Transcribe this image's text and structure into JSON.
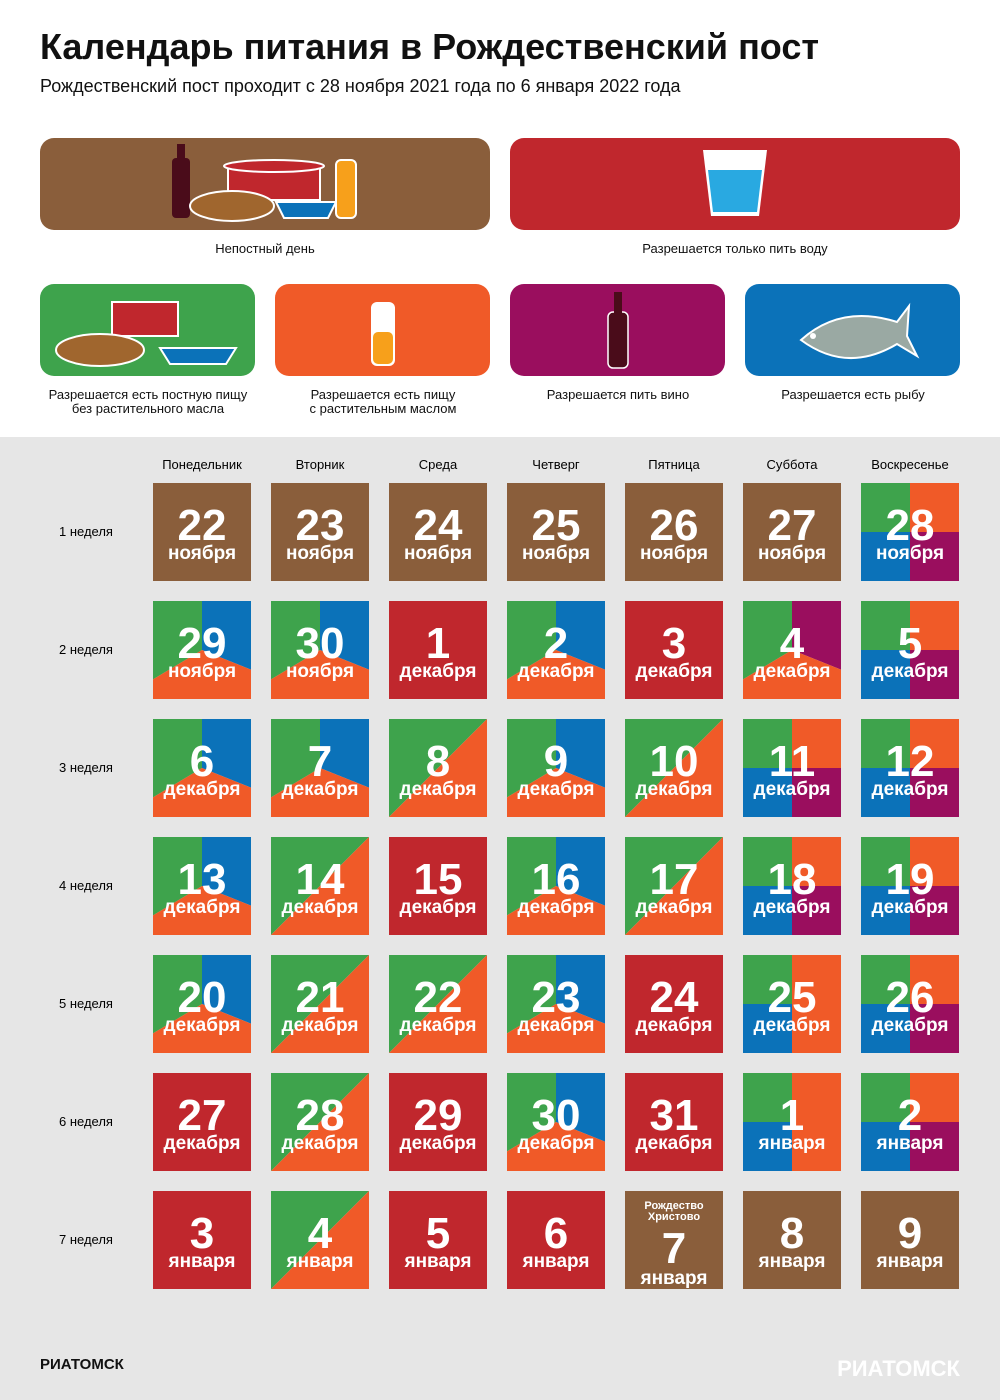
{
  "header": {
    "title": "Календарь питания в Рождественский пост",
    "subtitle": "Рождественский пост проходит с 28 ноября 2021 года по 6 января 2022 года"
  },
  "legend": [
    {
      "label": "Непостный день",
      "color": "#8a5e3b"
    },
    {
      "label": "Разрешается только пить воду",
      "color": "#c0272d"
    },
    {
      "label": "Разрешается есть постную пищу\nбез растительного масла",
      "color": "#3ea34c"
    },
    {
      "label": "Разрешается есть пищу\nс растительным маслом",
      "color": "#f05a28"
    },
    {
      "label": "Разрешается пить вино",
      "color": "#9a0e5e"
    },
    {
      "label": "Разрешается есть рыбу",
      "color": "#0b72b9"
    }
  ],
  "weekdays": [
    "Понедельник",
    "Вторник",
    "Среда",
    "Четверг",
    "Пятница",
    "Суббота",
    "Воскресенье"
  ],
  "weeks": [
    {
      "label": "1 неделя",
      "days": [
        {
          "number": "22",
          "month": "ноября",
          "pattern": "solid",
          "fills": [
            "#8a5e3b"
          ]
        },
        {
          "number": "23",
          "month": "ноября",
          "pattern": "solid",
          "fills": [
            "#8a5e3b"
          ]
        },
        {
          "number": "24",
          "month": "ноября",
          "pattern": "solid",
          "fills": [
            "#8a5e3b"
          ]
        },
        {
          "number": "25",
          "month": "ноября",
          "pattern": "solid",
          "fills": [
            "#8a5e3b"
          ]
        },
        {
          "number": "26",
          "month": "ноября",
          "pattern": "solid",
          "fills": [
            "#8a5e3b"
          ]
        },
        {
          "number": "27",
          "month": "ноября",
          "pattern": "solid",
          "fills": [
            "#8a5e3b"
          ]
        },
        {
          "number": "28",
          "month": "ноября",
          "pattern": "quad",
          "fills": [
            "#3ea34c",
            "#f05a28",
            "#0b72b9",
            "#9a0e5e"
          ]
        }
      ]
    },
    {
      "label": "2 неделя",
      "days": [
        {
          "number": "29",
          "month": "ноября",
          "pattern": "tri",
          "fills": [
            "#3ea34c",
            "#0b72b9",
            "#f05a28"
          ]
        },
        {
          "number": "30",
          "month": "ноября",
          "pattern": "tri",
          "fills": [
            "#3ea34c",
            "#0b72b9",
            "#f05a28"
          ]
        },
        {
          "number": "1",
          "month": "декабря",
          "pattern": "solid",
          "fills": [
            "#c0272d"
          ]
        },
        {
          "number": "2",
          "month": "декабря",
          "pattern": "tri",
          "fills": [
            "#3ea34c",
            "#0b72b9",
            "#f05a28"
          ]
        },
        {
          "number": "3",
          "month": "декабря",
          "pattern": "solid",
          "fills": [
            "#c0272d"
          ]
        },
        {
          "number": "4",
          "month": "декабря",
          "pattern": "tri",
          "fills": [
            "#3ea34c",
            "#9a0e5e",
            "#f05a28"
          ]
        },
        {
          "number": "5",
          "month": "декабря",
          "pattern": "quad",
          "fills": [
            "#3ea34c",
            "#f05a28",
            "#0b72b9",
            "#9a0e5e"
          ]
        }
      ]
    },
    {
      "label": "3 неделя",
      "days": [
        {
          "number": "6",
          "month": "декабря",
          "pattern": "tri",
          "fills": [
            "#3ea34c",
            "#0b72b9",
            "#f05a28"
          ]
        },
        {
          "number": "7",
          "month": "декабря",
          "pattern": "tri",
          "fills": [
            "#3ea34c",
            "#0b72b9",
            "#f05a28"
          ]
        },
        {
          "number": "8",
          "month": "декабря",
          "pattern": "diag",
          "fills": [
            "#3ea34c",
            "#f05a28"
          ]
        },
        {
          "number": "9",
          "month": "декабря",
          "pattern": "tri",
          "fills": [
            "#3ea34c",
            "#0b72b9",
            "#f05a28"
          ]
        },
        {
          "number": "10",
          "month": "декабря",
          "pattern": "diag",
          "fills": [
            "#3ea34c",
            "#f05a28"
          ]
        },
        {
          "number": "11",
          "month": "декабря",
          "pattern": "quad",
          "fills": [
            "#3ea34c",
            "#f05a28",
            "#0b72b9",
            "#9a0e5e"
          ]
        },
        {
          "number": "12",
          "month": "декабря",
          "pattern": "quad",
          "fills": [
            "#3ea34c",
            "#f05a28",
            "#0b72b9",
            "#9a0e5e"
          ]
        }
      ]
    },
    {
      "label": "4 неделя",
      "days": [
        {
          "number": "13",
          "month": "декабря",
          "pattern": "tri",
          "fills": [
            "#3ea34c",
            "#0b72b9",
            "#f05a28"
          ]
        },
        {
          "number": "14",
          "month": "декабря",
          "pattern": "diag",
          "fills": [
            "#3ea34c",
            "#f05a28"
          ]
        },
        {
          "number": "15",
          "month": "декабря",
          "pattern": "solid",
          "fills": [
            "#c0272d"
          ]
        },
        {
          "number": "16",
          "month": "декабря",
          "pattern": "tri",
          "fills": [
            "#3ea34c",
            "#0b72b9",
            "#f05a28"
          ]
        },
        {
          "number": "17",
          "month": "декабря",
          "pattern": "diag",
          "fills": [
            "#3ea34c",
            "#f05a28"
          ]
        },
        {
          "number": "18",
          "month": "декабря",
          "pattern": "quad",
          "fills": [
            "#3ea34c",
            "#f05a28",
            "#0b72b9",
            "#9a0e5e"
          ]
        },
        {
          "number": "19",
          "month": "декабря",
          "pattern": "quad",
          "fills": [
            "#3ea34c",
            "#f05a28",
            "#0b72b9",
            "#9a0e5e"
          ]
        }
      ]
    },
    {
      "label": "5 неделя",
      "days": [
        {
          "number": "20",
          "month": "декабря",
          "pattern": "tri",
          "fills": [
            "#3ea34c",
            "#0b72b9",
            "#f05a28"
          ]
        },
        {
          "number": "21",
          "month": "декабря",
          "pattern": "diag",
          "fills": [
            "#3ea34c",
            "#f05a28"
          ]
        },
        {
          "number": "22",
          "month": "декабря",
          "pattern": "diag",
          "fills": [
            "#3ea34c",
            "#f05a28"
          ]
        },
        {
          "number": "23",
          "month": "декабря",
          "pattern": "tri",
          "fills": [
            "#3ea34c",
            "#0b72b9",
            "#f05a28"
          ]
        },
        {
          "number": "24",
          "month": "декабря",
          "pattern": "solid",
          "fills": [
            "#c0272d"
          ]
        },
        {
          "number": "25",
          "month": "декабря",
          "pattern": "quad",
          "fills": [
            "#3ea34c",
            "#f05a28",
            "#0b72b9",
            "#f05a28"
          ]
        },
        {
          "number": "26",
          "month": "декабря",
          "pattern": "quad",
          "fills": [
            "#3ea34c",
            "#f05a28",
            "#0b72b9",
            "#9a0e5e"
          ]
        }
      ]
    },
    {
      "label": "6 неделя",
      "days": [
        {
          "number": "27",
          "month": "декабря",
          "pattern": "solid",
          "fills": [
            "#c0272d"
          ]
        },
        {
          "number": "28",
          "month": "декабря",
          "pattern": "diag",
          "fills": [
            "#3ea34c",
            "#f05a28"
          ]
        },
        {
          "number": "29",
          "month": "декабря",
          "pattern": "solid",
          "fills": [
            "#c0272d"
          ]
        },
        {
          "number": "30",
          "month": "декабря",
          "pattern": "tri",
          "fills": [
            "#3ea34c",
            "#0b72b9",
            "#f05a28"
          ]
        },
        {
          "number": "31",
          "month": "декабря",
          "pattern": "solid",
          "fills": [
            "#c0272d"
          ]
        },
        {
          "number": "1",
          "month": "января",
          "pattern": "quad",
          "fills": [
            "#3ea34c",
            "#f05a28",
            "#0b72b9",
            "#f05a28"
          ]
        },
        {
          "number": "2",
          "month": "января",
          "pattern": "quad",
          "fills": [
            "#3ea34c",
            "#f05a28",
            "#0b72b9",
            "#9a0e5e"
          ]
        }
      ]
    },
    {
      "label": "7 неделя",
      "days": [
        {
          "number": "3",
          "month": "января",
          "pattern": "solid",
          "fills": [
            "#c0272d"
          ]
        },
        {
          "number": "4",
          "month": "января",
          "pattern": "diag",
          "fills": [
            "#3ea34c",
            "#f05a28"
          ]
        },
        {
          "number": "5",
          "month": "января",
          "pattern": "solid",
          "fills": [
            "#c0272d"
          ]
        },
        {
          "number": "6",
          "month": "января",
          "pattern": "solid",
          "fills": [
            "#c0272d"
          ]
        },
        {
          "number": "7",
          "month": "января",
          "note": "Рождество\nХристово",
          "pattern": "solid",
          "fills": [
            "#8a5e3b"
          ]
        },
        {
          "number": "8",
          "month": "января",
          "pattern": "solid",
          "fills": [
            "#8a5e3b"
          ]
        },
        {
          "number": "9",
          "month": "января",
          "pattern": "solid",
          "fills": [
            "#8a5e3b"
          ]
        }
      ]
    }
  ],
  "footer": {
    "logo": "РИАТОМСК"
  }
}
